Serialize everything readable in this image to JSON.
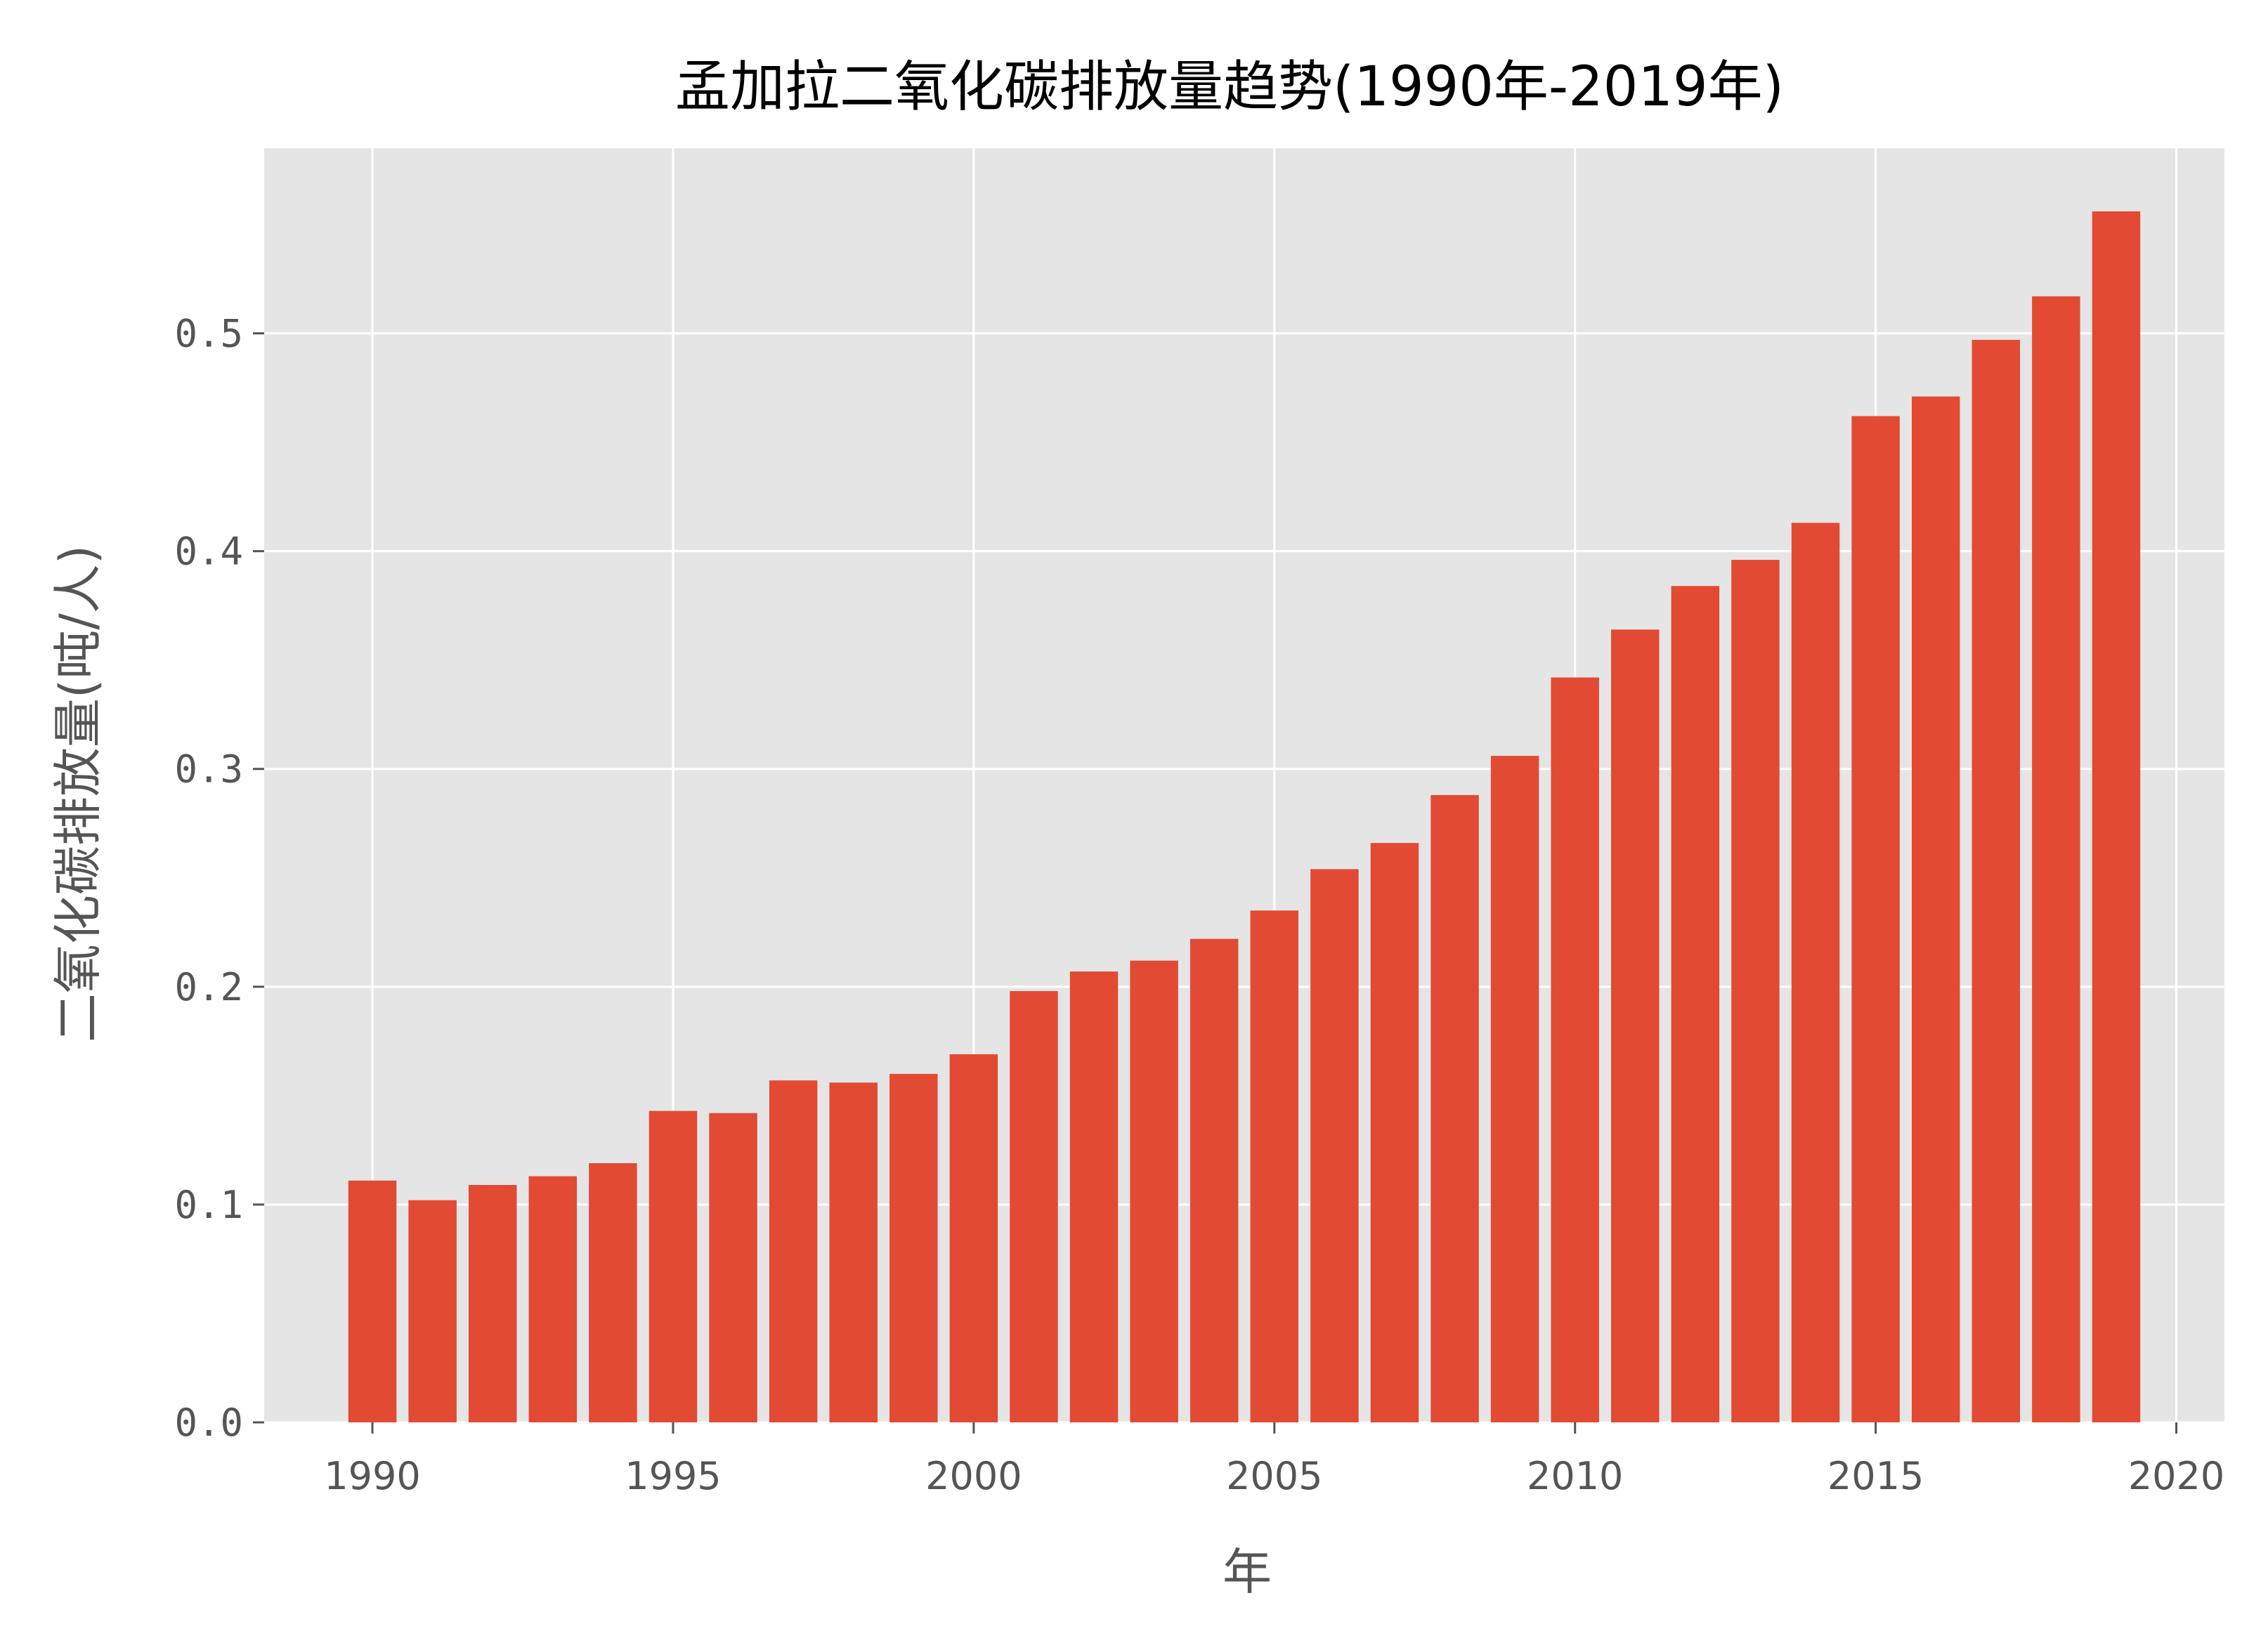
{
  "colors": {
    "plot_background": "#E5E5E5",
    "grid": "#FFFFFF",
    "bar": "#E24A33",
    "text": "#555555",
    "title": "#000000"
  },
  "chart_data": {
    "type": "bar",
    "title": "孟加拉二氧化碳排放量趋势(1990年-2019年)",
    "xlabel": "年",
    "ylabel": "二氧化碳排放量(吨/人)",
    "xlim": [
      1988.2,
      2020.8
    ],
    "ylim": [
      0,
      0.585
    ],
    "grid": true,
    "legend": "none",
    "x_ticks": [
      "1990",
      "1995",
      "2000",
      "2005",
      "2010",
      "2015",
      "2020"
    ],
    "y_ticks": [
      "0.0",
      "0.1",
      "0.2",
      "0.3",
      "0.4",
      "0.5"
    ],
    "categories": [
      1990,
      1991,
      1992,
      1993,
      1994,
      1995,
      1996,
      1997,
      1998,
      1999,
      2000,
      2001,
      2002,
      2003,
      2004,
      2005,
      2006,
      2007,
      2008,
      2009,
      2010,
      2011,
      2012,
      2013,
      2014,
      2015,
      2016,
      2017,
      2018,
      2019
    ],
    "values": [
      0.111,
      0.102,
      0.109,
      0.113,
      0.119,
      0.143,
      0.142,
      0.157,
      0.156,
      0.16,
      0.169,
      0.198,
      0.207,
      0.212,
      0.222,
      0.235,
      0.254,
      0.266,
      0.288,
      0.306,
      0.342,
      0.364,
      0.384,
      0.396,
      0.413,
      0.462,
      0.471,
      0.497,
      0.517,
      0.556
    ]
  }
}
